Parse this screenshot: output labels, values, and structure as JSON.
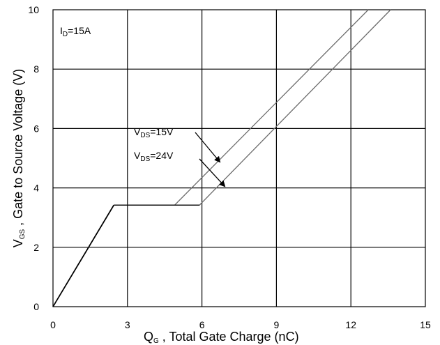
{
  "chart_data": {
    "type": "line",
    "title": "",
    "xlabel": {
      "main": "Q",
      "sub": "G",
      "rest": " , Total Gate Charge (nC)"
    },
    "ylabel": {
      "main": "V",
      "sub": "GS",
      "rest": " , Gate to Source Voltage (V)"
    },
    "xlim": [
      0,
      15
    ],
    "ylim": [
      0,
      10
    ],
    "xticks": [
      0,
      3,
      6,
      9,
      12,
      15
    ],
    "yticks": [
      0,
      2,
      4,
      6,
      8,
      10
    ],
    "grid": true,
    "condition": {
      "main": "I",
      "sub": "D",
      "rest": "=15A"
    },
    "series": [
      {
        "label": {
          "main": "V",
          "sub": "DS",
          "rest": "=15V"
        },
        "points": [
          [
            0,
            0
          ],
          [
            2.45,
            3.42
          ],
          [
            4.9,
            3.42
          ],
          [
            12.7,
            10.0
          ]
        ]
      },
      {
        "label": {
          "main": "V",
          "sub": "DS",
          "rest": "=24V"
        },
        "points": [
          [
            0,
            0
          ],
          [
            2.45,
            3.42
          ],
          [
            5.9,
            3.42
          ],
          [
            13.6,
            10.0
          ]
        ]
      }
    ],
    "colors": {
      "common": "#000000",
      "diverge": "#6b6b6b",
      "grid": "#000000"
    }
  }
}
